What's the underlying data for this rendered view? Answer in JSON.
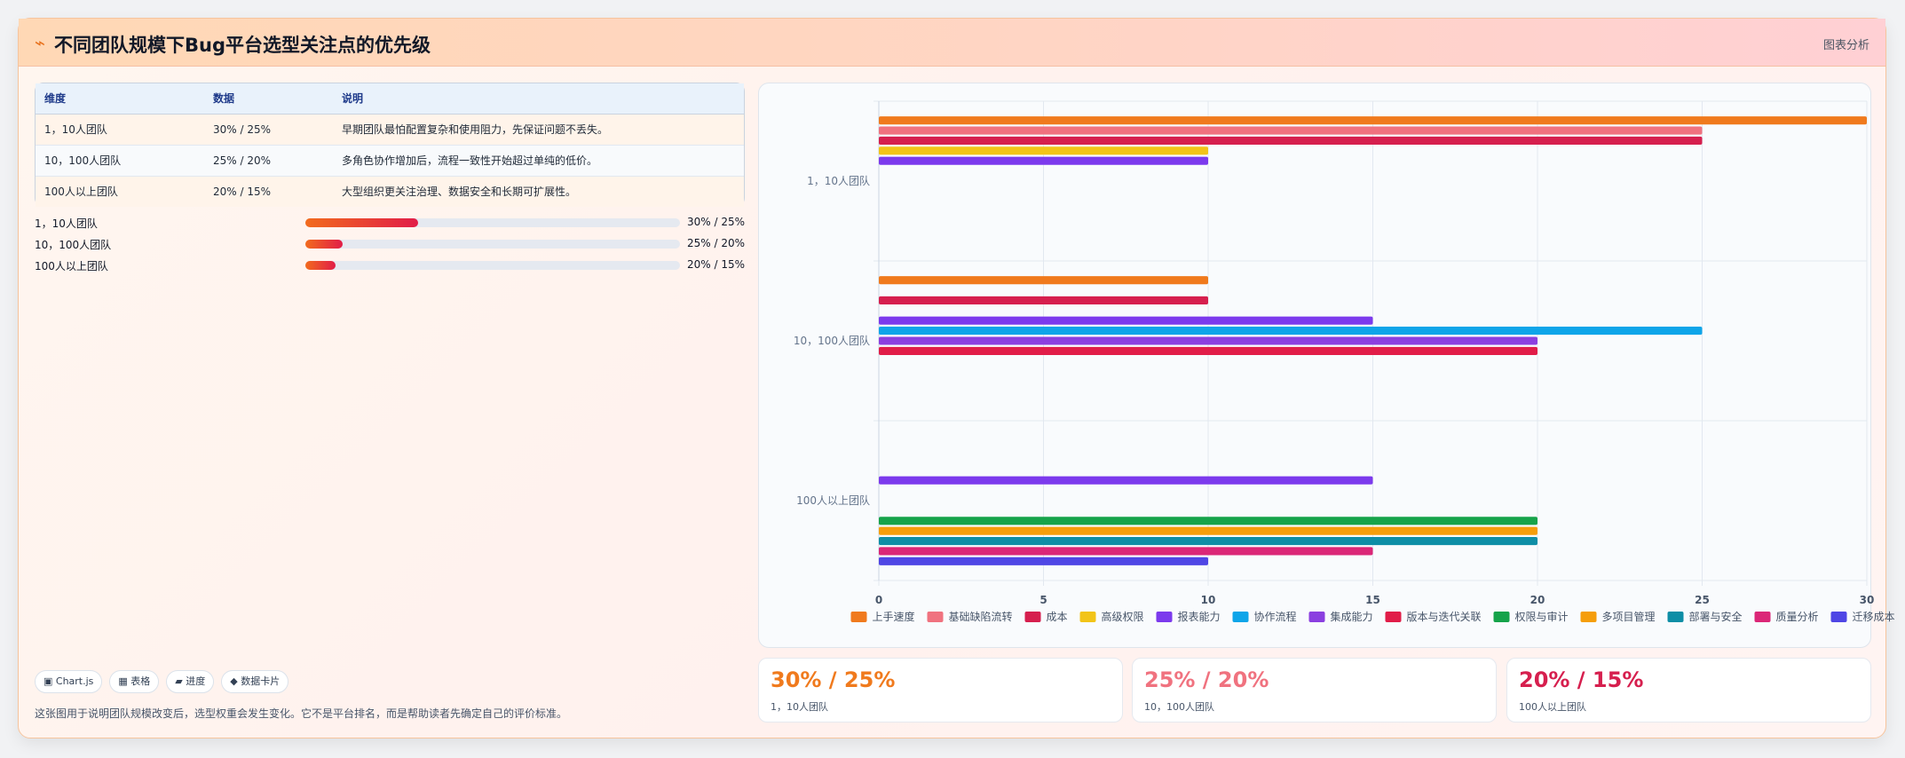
{
  "header": {
    "icon": "lightning-icon",
    "title": "不同团队规模下Bug平台选型关注点的优先级",
    "right_label": "图表分析"
  },
  "table": {
    "columns": [
      "维度",
      "数据",
      "说明"
    ],
    "rows": [
      [
        "1，10人团队",
        "30% / 25%",
        "早期团队最怕配置复杂和使用阻力，先保证问题不丢失。"
      ],
      [
        "10，100人团队",
        "25% / 20%",
        "多角色协作增加后，流程一致性开始超过单纯的低价。"
      ],
      [
        "100人以上团队",
        "20% / 15%",
        "大型组织更关注治理、数据安全和长期可扩展性。"
      ]
    ]
  },
  "progress": [
    {
      "label": "1，10人团队",
      "value": "30% / 25%",
      "fill": 0.3
    },
    {
      "label": "10，100人团队",
      "value": "25% / 20%",
      "fill": 0.1
    },
    {
      "label": "100人以上团队",
      "value": "20% / 15%",
      "fill": 0.08
    }
  ],
  "tags": [
    "▣ Chart.js",
    "▦ 表格",
    "▰ 进度",
    "◆ 数据卡片"
  ],
  "footnote": "这张图用于说明团队规模改变后，选型权重会发生变化。它不是平台排名，而是帮助读者先确定自己的评价标准。",
  "kpis": [
    {
      "value": "30% / 25%",
      "label": "1，10人团队",
      "color": "#f07a1d"
    },
    {
      "value": "25% / 20%",
      "label": "10，100人团队",
      "color": "#f0727f"
    },
    {
      "value": "20% / 15%",
      "label": "100人以上团队",
      "color": "#d61f4e"
    }
  ],
  "chart_data": {
    "type": "bar",
    "orientation": "horizontal",
    "categories": [
      "1，10人团队",
      "10，100人团队",
      "100人以上团队"
    ],
    "xlim": [
      0,
      30
    ],
    "xticks": [
      0,
      5,
      10,
      15,
      20,
      25,
      30
    ],
    "grid": true,
    "legend_position": "bottom",
    "series": [
      {
        "name": "上手速度",
        "color": "#f07a1d",
        "values": [
          30,
          10,
          null
        ]
      },
      {
        "name": "基础缺陷流转",
        "color": "#f0727f",
        "values": [
          25,
          null,
          null
        ]
      },
      {
        "name": "成本",
        "color": "#d61f4e",
        "values": [
          25,
          10,
          null
        ]
      },
      {
        "name": "高级权限",
        "color": "#f2c418",
        "values": [
          10,
          null,
          null
        ]
      },
      {
        "name": "报表能力",
        "color": "#7c3aed",
        "values": [
          10,
          15,
          15
        ]
      },
      {
        "name": "协作流程",
        "color": "#0ea5e9",
        "values": [
          null,
          25,
          null
        ]
      },
      {
        "name": "集成能力",
        "color": "#8b3fe0",
        "values": [
          null,
          20,
          null
        ]
      },
      {
        "name": "版本与迭代关联",
        "color": "#e11d48",
        "values": [
          null,
          20,
          null
        ]
      },
      {
        "name": "权限与审计",
        "color": "#16a34a",
        "values": [
          null,
          null,
          20
        ]
      },
      {
        "name": "多项目管理",
        "color": "#f59e0b",
        "values": [
          null,
          null,
          20
        ]
      },
      {
        "name": "部署与安全",
        "color": "#0e8ea6",
        "values": [
          null,
          null,
          20
        ]
      },
      {
        "name": "质量分析",
        "color": "#db2777",
        "values": [
          null,
          null,
          15
        ]
      },
      {
        "name": "迁移成本",
        "color": "#4f46e5",
        "values": [
          null,
          null,
          10
        ]
      }
    ]
  }
}
